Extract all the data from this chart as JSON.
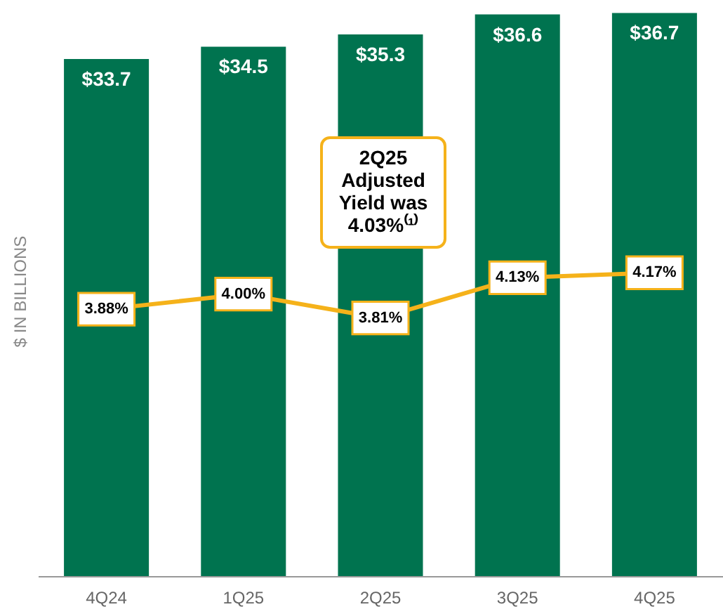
{
  "chart_data": {
    "type": "bar",
    "ylabel": "$ IN BILLIONS",
    "categories": [
      "4Q24",
      "1Q25",
      "2Q25",
      "3Q25",
      "4Q25"
    ],
    "series": [
      {
        "color": "#00734f",
        "values": [
          33.7,
          34.5,
          35.3,
          36.6,
          36.7
        ],
        "value_labels": [
          "$33.7",
          "$34.5",
          "$35.3",
          "$36.6",
          "$36.7"
        ]
      },
      {
        "type": "line",
        "axis": "y2",
        "color": "#f5b21a",
        "values": [
          3.88,
          4.0,
          3.81,
          4.13,
          4.17
        ],
        "value_labels": [
          "3.88%",
          "4.00%",
          "3.81%",
          "4.13%",
          "4.17%"
        ]
      }
    ],
    "annotations": [
      "2Q25\nAdjusted\nYield was\n4.03%⁽¹⁾"
    ],
    "tick_labels": "x",
    "marker": "square"
  }
}
